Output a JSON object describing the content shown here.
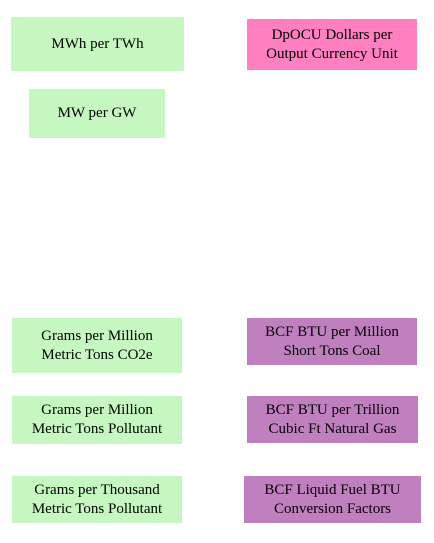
{
  "nodes": {
    "mwh_per_twh": {
      "label": "MWh per TWh",
      "color": "#c6f7c0"
    },
    "dpocu": {
      "label": "DpOCU Dollars per\nOutput Currency Unit",
      "color": "#ff80c0"
    },
    "mw_per_gw": {
      "label": "MW per GW",
      "color": "#c6f7c0"
    },
    "grams_co2e": {
      "label": "Grams per Million\nMetric Tons CO2e",
      "color": "#c6f7c0"
    },
    "bcf_coal": {
      "label": "BCF BTU per Million\nShort Tons Coal",
      "color": "#c080c0"
    },
    "grams_pollutant_million": {
      "label": "Grams per Million\nMetric Tons Pollutant",
      "color": "#c6f7c0"
    },
    "bcf_gas": {
      "label": "BCF BTU per Trillion\nCubic Ft Natural Gas",
      "color": "#c080c0"
    },
    "grams_pollutant_thousand": {
      "label": "Grams per Thousand\nMetric Tons Pollutant",
      "color": "#c6f7c0"
    },
    "bcf_liquid": {
      "label": "BCF Liquid Fuel BTU\nConversion Factors",
      "color": "#c080c0"
    }
  }
}
